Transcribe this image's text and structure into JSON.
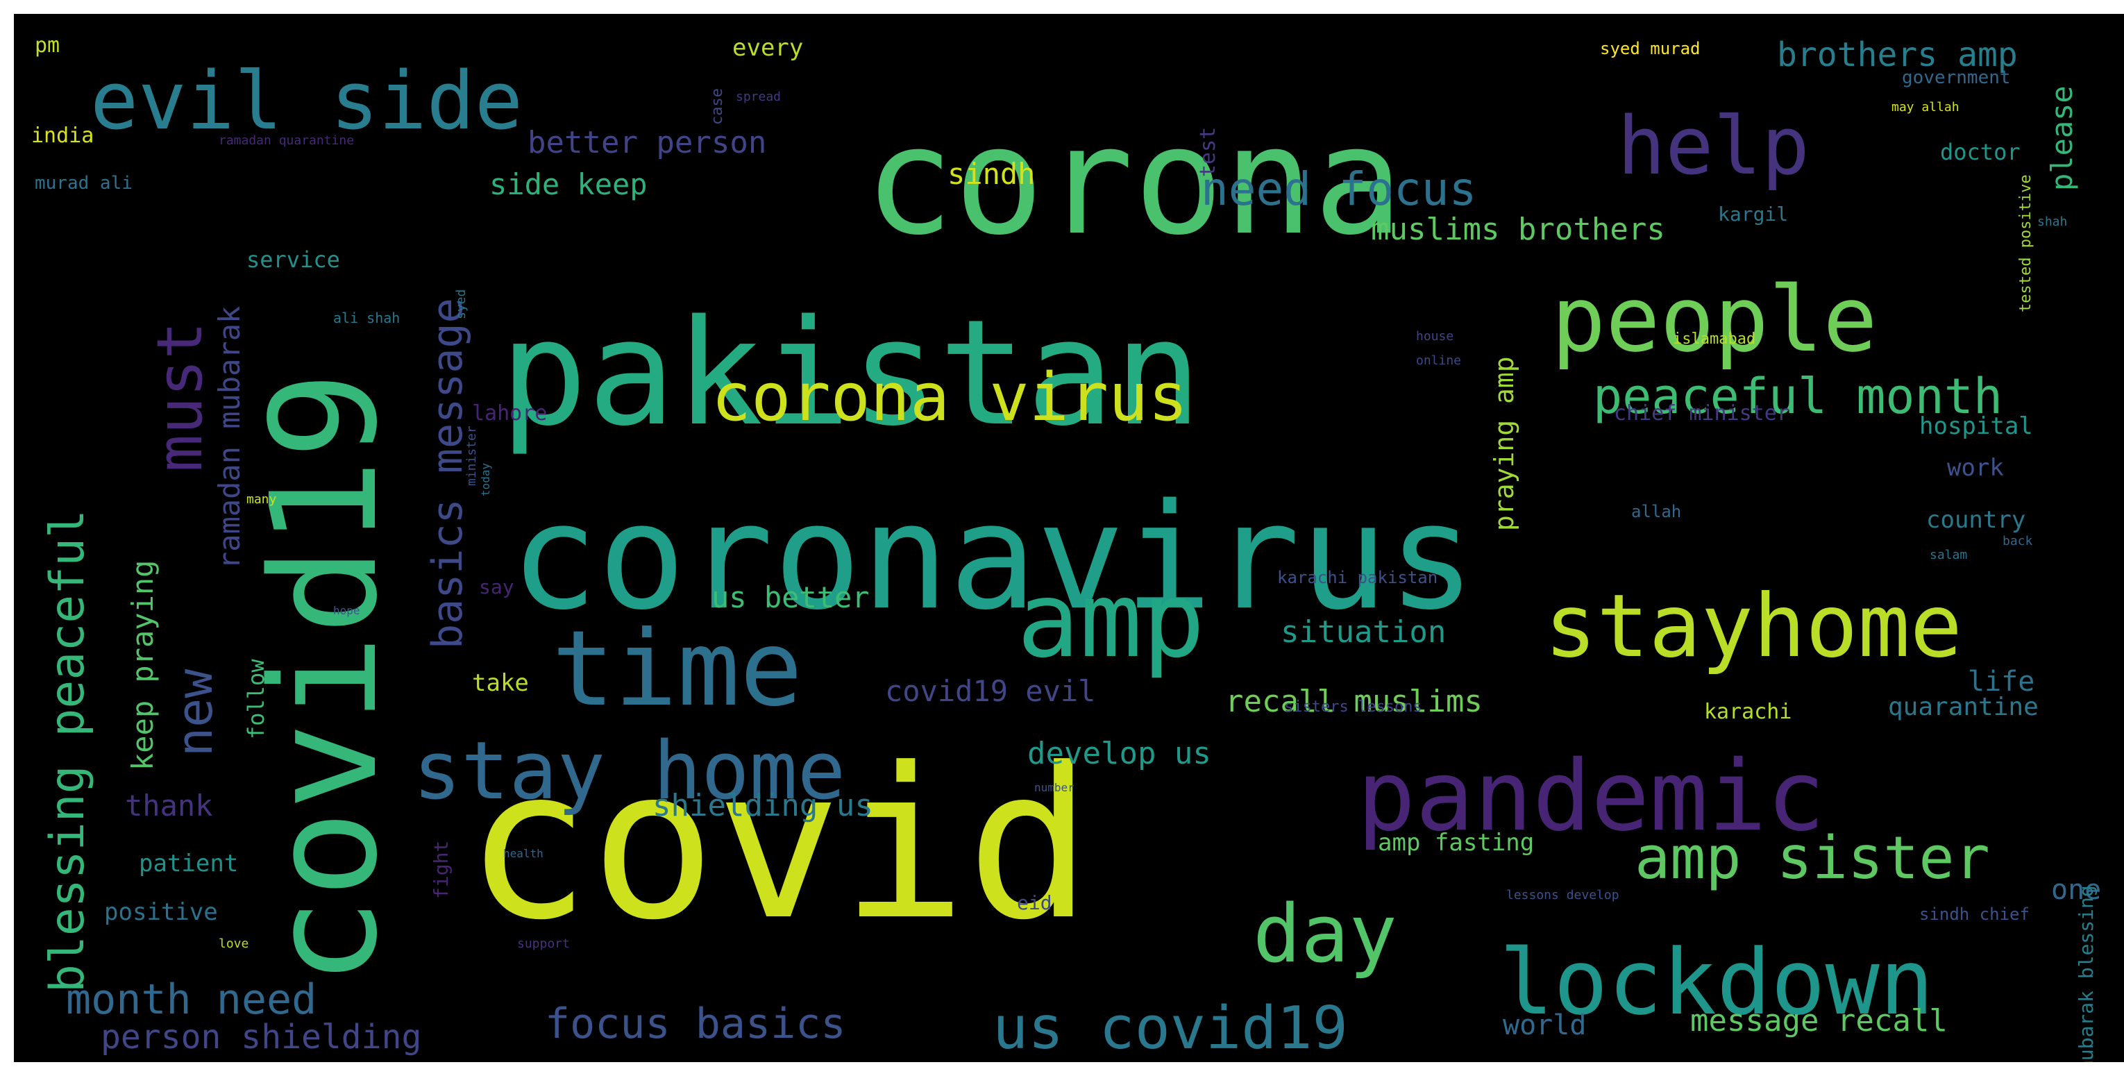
{
  "cloud": {
    "words": [
      {
        "text": "coronavirus",
        "color": "#1f9e89"
      },
      {
        "text": "covid",
        "color": "#cde11d"
      },
      {
        "text": "covid19",
        "color": "#35b779"
      },
      {
        "text": "pakistan",
        "color": "#25ab82"
      },
      {
        "text": "corona",
        "color": "#4ac16d"
      },
      {
        "text": "pandemic",
        "color": "#482475"
      },
      {
        "text": "stayhome",
        "color": "#bade28"
      },
      {
        "text": "amp",
        "color": "#22a785"
      },
      {
        "text": "time",
        "color": "#2d708e"
      },
      {
        "text": "people",
        "color": "#6ece58"
      },
      {
        "text": "lockdown",
        "color": "#1f968b"
      },
      {
        "text": "stay home",
        "color": "#31688e"
      },
      {
        "text": "evil side",
        "color": "#287d8e"
      },
      {
        "text": "day",
        "color": "#52c569"
      },
      {
        "text": "help",
        "color": "#46337e"
      },
      {
        "text": "corona virus",
        "color": "#cde11d"
      },
      {
        "text": "must",
        "color": "#482878"
      },
      {
        "text": "us covid19",
        "color": "#2a788e"
      },
      {
        "text": "amp sister",
        "color": "#5ec962"
      },
      {
        "text": "peaceful month",
        "color": "#3dbc74"
      },
      {
        "text": "blessing peaceful",
        "color": "#35b779"
      },
      {
        "text": "new",
        "color": "#3b528b"
      },
      {
        "text": "need focus",
        "color": "#2c728e"
      },
      {
        "text": "basics message",
        "color": "#3e4989"
      },
      {
        "text": "month need",
        "color": "#31688e"
      },
      {
        "text": "focus basics",
        "color": "#3b528b"
      },
      {
        "text": "person shielding",
        "color": "#404688"
      },
      {
        "text": "muslims brothers",
        "color": "#5ec962"
      },
      {
        "text": "brothers amp",
        "color": "#277f8e"
      },
      {
        "text": "better person",
        "color": "#414487"
      },
      {
        "text": "side keep",
        "color": "#2db27d"
      },
      {
        "text": "ramadan mubarak",
        "color": "#3f4788"
      },
      {
        "text": "keep praying",
        "color": "#52c569"
      },
      {
        "text": "praying amp",
        "color": "#a0da39"
      },
      {
        "text": "situation",
        "color": "#1f9a8a"
      },
      {
        "text": "recall muslims",
        "color": "#6ece58"
      },
      {
        "text": "develop us",
        "color": "#1f9a8a"
      },
      {
        "text": "covid19 evil",
        "color": "#404688"
      },
      {
        "text": "us better",
        "color": "#3dbc74"
      },
      {
        "text": "shielding us",
        "color": "#2a788e"
      },
      {
        "text": "message recall",
        "color": "#5ec962"
      },
      {
        "text": "world",
        "color": "#31688e"
      },
      {
        "text": "thank",
        "color": "#46337e"
      },
      {
        "text": "patient",
        "color": "#21918c"
      },
      {
        "text": "positive",
        "color": "#2c728e"
      },
      {
        "text": "life",
        "color": "#2c728e"
      },
      {
        "text": "quarantine",
        "color": "#2a788e"
      },
      {
        "text": "one",
        "color": "#31688e"
      },
      {
        "text": "please",
        "color": "#35b779"
      },
      {
        "text": "hospital",
        "color": "#1f968b"
      },
      {
        "text": "country",
        "color": "#2a788e"
      },
      {
        "text": "work",
        "color": "#3b528b"
      },
      {
        "text": "sindh",
        "color": "#d2e21b"
      },
      {
        "text": "chief minister",
        "color": "#443983"
      },
      {
        "text": "amp fasting",
        "color": "#5ec962"
      },
      {
        "text": "karachi",
        "color": "#b5de2b"
      },
      {
        "text": "take",
        "color": "#bade28"
      },
      {
        "text": "follow",
        "color": "#3dbc74"
      },
      {
        "text": "every",
        "color": "#bade28"
      },
      {
        "text": "india",
        "color": "#d8e219"
      },
      {
        "text": "pm",
        "color": "#c2df23"
      },
      {
        "text": "murad ali",
        "color": "#2c728e"
      },
      {
        "text": "lahore",
        "color": "#482475"
      },
      {
        "text": "service",
        "color": "#21918c"
      },
      {
        "text": "doctor",
        "color": "#1f968b"
      },
      {
        "text": "kargil",
        "color": "#2a788e"
      },
      {
        "text": "syed murad",
        "color": "#fde725"
      },
      {
        "text": "government",
        "color": "#31688e"
      },
      {
        "text": "test",
        "color": "#443983"
      },
      {
        "text": "case",
        "color": "#3e4989"
      },
      {
        "text": "fight",
        "color": "#482475"
      },
      {
        "text": "mubarak blessing",
        "color": "#277f8e"
      },
      {
        "text": "tested positive",
        "color": "#a0da39"
      },
      {
        "text": "eid",
        "color": "#3e4989"
      },
      {
        "text": "say",
        "color": "#482475"
      },
      {
        "text": "karachi pakistan",
        "color": "#3b528b"
      },
      {
        "text": "sisters lessons",
        "color": "#3e4989"
      },
      {
        "text": "sindh chief",
        "color": "#3b528b"
      },
      {
        "text": "islamabad",
        "color": "#bade28"
      },
      {
        "text": "allah",
        "color": "#31688e"
      },
      {
        "text": "lessons develop",
        "color": "#3b528b"
      },
      {
        "text": "ali shah",
        "color": "#2a788e"
      },
      {
        "text": "ramadan quarantine",
        "color": "#482878"
      },
      {
        "text": "spread",
        "color": "#443983"
      },
      {
        "text": "may allah",
        "color": "#d8e219"
      },
      {
        "text": "salam",
        "color": "#2c728e"
      },
      {
        "text": "back",
        "color": "#31688e"
      },
      {
        "text": "minister",
        "color": "#3b528b"
      },
      {
        "text": "syed",
        "color": "#2a788e"
      },
      {
        "text": "house",
        "color": "#414487"
      },
      {
        "text": "online",
        "color": "#3e4989"
      },
      {
        "text": "today",
        "color": "#2c728e"
      },
      {
        "text": "many",
        "color": "#cde11d"
      },
      {
        "text": "hope",
        "color": "#3b528b"
      },
      {
        "text": "love",
        "color": "#bade28"
      },
      {
        "text": "health",
        "color": "#31688e"
      },
      {
        "text": "support",
        "color": "#46337e"
      },
      {
        "text": "number",
        "color": "#3b528b"
      },
      {
        "text": "shah",
        "color": "#2a788e"
      }
    ]
  }
}
